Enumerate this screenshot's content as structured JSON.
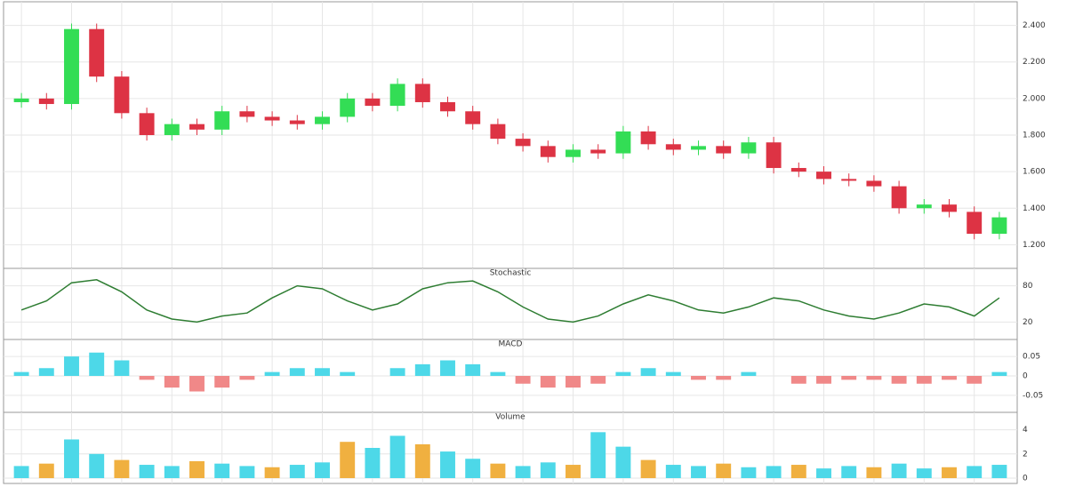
{
  "chart_data": [
    {
      "type": "candlestick",
      "open": [
        1.98,
        2.0,
        1.97,
        2.38,
        2.12,
        1.92,
        1.8,
        1.86,
        1.83,
        1.93,
        1.9,
        1.88,
        1.86,
        1.9,
        2.0,
        1.96,
        2.08,
        1.98,
        1.93,
        1.86,
        1.78,
        1.74,
        1.68,
        1.72,
        1.7,
        1.82,
        1.75,
        1.72,
        1.74,
        1.7,
        1.76,
        1.62,
        1.6,
        1.56,
        1.55,
        1.52,
        1.4,
        1.42,
        1.38,
        1.26
      ],
      "high": [
        2.03,
        2.03,
        2.41,
        2.41,
        2.15,
        1.95,
        1.89,
        1.89,
        1.96,
        1.96,
        1.93,
        1.91,
        1.93,
        2.03,
        2.03,
        2.11,
        2.11,
        2.01,
        1.96,
        1.89,
        1.81,
        1.77,
        1.75,
        1.75,
        1.85,
        1.85,
        1.78,
        1.77,
        1.77,
        1.79,
        1.79,
        1.65,
        1.63,
        1.59,
        1.58,
        1.55,
        1.45,
        1.45,
        1.41,
        1.38
      ],
      "low": [
        1.95,
        1.94,
        1.94,
        2.09,
        1.89,
        1.77,
        1.77,
        1.8,
        1.8,
        1.87,
        1.85,
        1.83,
        1.83,
        1.87,
        1.93,
        1.93,
        1.95,
        1.9,
        1.83,
        1.75,
        1.71,
        1.65,
        1.65,
        1.67,
        1.67,
        1.72,
        1.69,
        1.69,
        1.67,
        1.67,
        1.59,
        1.57,
        1.53,
        1.52,
        1.49,
        1.37,
        1.37,
        1.35,
        1.23,
        1.23
      ],
      "close": [
        2.0,
        1.97,
        2.38,
        2.12,
        1.92,
        1.8,
        1.86,
        1.83,
        1.93,
        1.9,
        1.88,
        1.86,
        1.9,
        2.0,
        1.96,
        2.08,
        1.98,
        1.93,
        1.86,
        1.78,
        1.74,
        1.68,
        1.72,
        1.7,
        1.82,
        1.75,
        1.72,
        1.74,
        1.7,
        1.76,
        1.62,
        1.6,
        1.56,
        1.55,
        1.52,
        1.4,
        1.42,
        1.38,
        1.26,
        1.35
      ],
      "up_color": "#33dd55",
      "down_color": "#dd3344",
      "ylim": [
        1.1,
        2.5
      ],
      "yticks": [
        {
          "value": 1.2,
          "label": "1.200"
        },
        {
          "value": 1.4,
          "label": "1.400"
        },
        {
          "value": 1.6,
          "label": "1.600"
        },
        {
          "value": 1.8,
          "label": "1.800"
        },
        {
          "value": 2.0,
          "label": "2.000"
        },
        {
          "value": 2.2,
          "label": "2.200"
        },
        {
          "value": 2.4,
          "label": "2.400"
        }
      ],
      "grid": true
    },
    {
      "type": "line",
      "title": "Stochastic",
      "color": "#2e7d32",
      "values": [
        40,
        55,
        85,
        90,
        70,
        40,
        25,
        20,
        30,
        35,
        60,
        80,
        75,
        55,
        40,
        50,
        75,
        85,
        88,
        70,
        45,
        25,
        20,
        30,
        50,
        65,
        55,
        40,
        35,
        45,
        60,
        55,
        40,
        30,
        25,
        35,
        50,
        45,
        30,
        60
      ],
      "ylim": [
        0,
        100
      ],
      "yticks": [
        20,
        80
      ],
      "grid": true
    },
    {
      "type": "bar",
      "title": "MACD",
      "color": "#4dd8e8",
      "negative_color": "#f08888",
      "values": [
        0.01,
        0.02,
        0.05,
        0.06,
        0.04,
        -0.01,
        -0.03,
        -0.04,
        -0.03,
        -0.01,
        0.01,
        0.02,
        0.02,
        0.01,
        0,
        0.02,
        0.03,
        0.04,
        0.03,
        0.01,
        -0.02,
        -0.03,
        -0.03,
        -0.02,
        0.01,
        0.02,
        0.01,
        -0.01,
        -0.01,
        0.01,
        0,
        -0.02,
        -0.02,
        -0.01,
        -0.01,
        -0.02,
        -0.02,
        -0.01,
        -0.02,
        0.01
      ],
      "ylim": [
        -0.08,
        0.08
      ],
      "yticks": [
        -0.05,
        0,
        0.05
      ],
      "grid": true
    },
    {
      "type": "bar",
      "title": "Volume",
      "color": "#4dd8e8",
      "negative_color": "#f0b040",
      "values": [
        1.0,
        1.2,
        3.2,
        2.0,
        1.5,
        1.1,
        1.0,
        1.4,
        1.2,
        1.0,
        0.9,
        1.1,
        1.3,
        3.0,
        2.5,
        3.5,
        2.8,
        2.2,
        1.6,
        1.2,
        1.0,
        1.3,
        1.1,
        3.8,
        2.6,
        1.5,
        1.1,
        1.0,
        1.2,
        0.9,
        1.0,
        1.1,
        0.8,
        1.0,
        0.9,
        1.2,
        0.8,
        0.9,
        1.0,
        1.1
      ],
      "ylim": [
        0,
        5
      ],
      "yticks": [
        0,
        2,
        4
      ],
      "grid": true
    }
  ]
}
